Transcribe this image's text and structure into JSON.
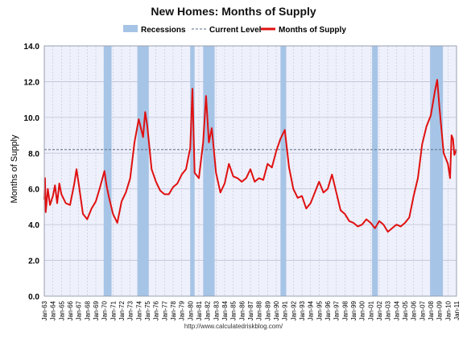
{
  "title": "New Homes: Months of Supply",
  "source": "http://www.calculatedriskblog.com/",
  "colors": {
    "plot_bg": "#eef0fb",
    "grid": "#bfc3d6",
    "recession": "#a6c4e6",
    "current_level": "#5b6c86",
    "line": "#e01010",
    "frame": "#9aa0b0"
  },
  "legend": [
    {
      "label": "Recessions",
      "symbol": "band"
    },
    {
      "label": "Current Level",
      "symbol": "dashed-line"
    },
    {
      "label": "Months of Supply",
      "symbol": "line"
    }
  ],
  "chart_data": {
    "type": "line",
    "title": "New Homes: Months of Supply",
    "ylabel": "Months of Supply",
    "xlabel": "",
    "ylim": [
      0,
      14
    ],
    "yticks": [
      "0.0",
      "2.0",
      "4.0",
      "6.0",
      "8.0",
      "10.0",
      "12.0",
      "14.0"
    ],
    "x_range": [
      "Jan-63",
      "Jan-11"
    ],
    "xticks": [
      "Jan-63",
      "Jan-64",
      "Jan-65",
      "Jan-66",
      "Jan-67",
      "Jan-68",
      "Jan-69",
      "Jan-70",
      "Jan-71",
      "Jan-72",
      "Jan-73",
      "Jan-74",
      "Jan-75",
      "Jan-76",
      "Jan-77",
      "Jan-78",
      "Jan-79",
      "Jan-80",
      "Jan-81",
      "Jan-82",
      "Jan-83",
      "Jan-84",
      "Jan-85",
      "Jan-86",
      "Jan-87",
      "Jan-88",
      "Jan-89",
      "Jan-90",
      "Jan-91",
      "Jan-92",
      "Jan-93",
      "Jan-94",
      "Jan-95",
      "Jan-96",
      "Jan-97",
      "Jan-98",
      "Jan-99",
      "Jan-00",
      "Jan-01",
      "Jan-02",
      "Jan-03",
      "Jan-04",
      "Jan-05",
      "Jan-06",
      "Jan-07",
      "Jan-08",
      "Jan-09",
      "Jan-10",
      "Jan-11"
    ],
    "grid": true,
    "legend_position": "top",
    "current_level": 8.2,
    "recessions": [
      {
        "start": "Dec-69",
        "end": "Nov-70"
      },
      {
        "start": "Nov-73",
        "end": "Mar-75"
      },
      {
        "start": "Jan-80",
        "end": "Jul-80"
      },
      {
        "start": "Jul-81",
        "end": "Nov-82"
      },
      {
        "start": "Jul-90",
        "end": "Mar-91"
      },
      {
        "start": "Mar-01",
        "end": "Nov-01"
      },
      {
        "start": "Dec-07",
        "end": "Jun-09"
      }
    ],
    "series": [
      {
        "name": "Months of Supply",
        "points": [
          [
            "Jan-63",
            5.4
          ],
          [
            "Feb-63",
            6.6
          ],
          [
            "Mar-63",
            4.7
          ],
          [
            "Jun-63",
            6.0
          ],
          [
            "Sep-63",
            5.1
          ],
          [
            "Jan-64",
            5.6
          ],
          [
            "Apr-64",
            6.2
          ],
          [
            "Jul-64",
            5.2
          ],
          [
            "Oct-64",
            6.3
          ],
          [
            "Jan-65",
            5.7
          ],
          [
            "Jul-65",
            5.2
          ],
          [
            "Jan-66",
            5.1
          ],
          [
            "Jul-66",
            6.3
          ],
          [
            "Oct-66",
            7.1
          ],
          [
            "Jan-67",
            6.3
          ],
          [
            "Jul-67",
            4.6
          ],
          [
            "Jan-68",
            4.3
          ],
          [
            "Jul-68",
            4.9
          ],
          [
            "Jan-69",
            5.3
          ],
          [
            "Jul-69",
            6.1
          ],
          [
            "Jan-70",
            7.0
          ],
          [
            "Apr-70",
            6.2
          ],
          [
            "Jul-70",
            5.6
          ],
          [
            "Jan-71",
            4.6
          ],
          [
            "Jul-71",
            4.1
          ],
          [
            "Jan-72",
            5.3
          ],
          [
            "Jul-72",
            5.8
          ],
          [
            "Jan-73",
            6.6
          ],
          [
            "Jul-73",
            8.6
          ],
          [
            "Jan-74",
            9.9
          ],
          [
            "Jul-74",
            8.9
          ],
          [
            "Oct-74",
            10.3
          ],
          [
            "Jan-75",
            9.5
          ],
          [
            "Jul-75",
            7.1
          ],
          [
            "Jan-76",
            6.4
          ],
          [
            "Jul-76",
            5.9
          ],
          [
            "Jan-77",
            5.7
          ],
          [
            "Jul-77",
            5.7
          ],
          [
            "Jan-78",
            6.1
          ],
          [
            "Jul-78",
            6.3
          ],
          [
            "Jan-79",
            6.8
          ],
          [
            "Jul-79",
            7.1
          ],
          [
            "Jan-80",
            8.3
          ],
          [
            "Apr-80",
            11.6
          ],
          [
            "Jul-80",
            6.9
          ],
          [
            "Jan-81",
            6.6
          ],
          [
            "Jul-81",
            8.6
          ],
          [
            "Nov-81",
            11.2
          ],
          [
            "Mar-82",
            8.6
          ],
          [
            "Jul-82",
            9.4
          ],
          [
            "Jan-83",
            6.9
          ],
          [
            "Jul-83",
            5.8
          ],
          [
            "Jan-84",
            6.3
          ],
          [
            "Jul-84",
            7.4
          ],
          [
            "Jan-85",
            6.7
          ],
          [
            "Jul-85",
            6.6
          ],
          [
            "Jan-86",
            6.4
          ],
          [
            "Jul-86",
            6.6
          ],
          [
            "Jan-87",
            7.1
          ],
          [
            "Jul-87",
            6.4
          ],
          [
            "Jan-88",
            6.6
          ],
          [
            "Jul-88",
            6.5
          ],
          [
            "Jan-89",
            7.4
          ],
          [
            "Jul-89",
            7.2
          ],
          [
            "Jan-90",
            8.1
          ],
          [
            "Jul-90",
            8.8
          ],
          [
            "Jan-91",
            9.3
          ],
          [
            "Jul-91",
            7.2
          ],
          [
            "Jan-92",
            6.0
          ],
          [
            "Jul-92",
            5.5
          ],
          [
            "Jan-93",
            5.6
          ],
          [
            "Jul-93",
            4.9
          ],
          [
            "Jan-94",
            5.2
          ],
          [
            "Jul-94",
            5.8
          ],
          [
            "Jan-95",
            6.4
          ],
          [
            "Jul-95",
            5.8
          ],
          [
            "Jan-96",
            6.0
          ],
          [
            "Jul-96",
            6.8
          ],
          [
            "Jan-97",
            5.8
          ],
          [
            "Jul-97",
            4.8
          ],
          [
            "Jan-98",
            4.6
          ],
          [
            "Jul-98",
            4.2
          ],
          [
            "Jan-99",
            4.1
          ],
          [
            "Jul-99",
            3.9
          ],
          [
            "Jan-00",
            4.0
          ],
          [
            "Jul-00",
            4.3
          ],
          [
            "Jan-01",
            4.1
          ],
          [
            "Jul-01",
            3.8
          ],
          [
            "Jan-02",
            4.2
          ],
          [
            "Jul-02",
            4.0
          ],
          [
            "Jan-03",
            3.6
          ],
          [
            "Jul-03",
            3.8
          ],
          [
            "Jan-04",
            4.0
          ],
          [
            "Jul-04",
            3.9
          ],
          [
            "Jan-05",
            4.1
          ],
          [
            "Jul-05",
            4.4
          ],
          [
            "Jan-06",
            5.6
          ],
          [
            "Jul-06",
            6.6
          ],
          [
            "Jan-07",
            8.5
          ],
          [
            "Jul-07",
            9.5
          ],
          [
            "Jan-08",
            10.1
          ],
          [
            "Jul-08",
            11.5
          ],
          [
            "Oct-08",
            12.1
          ],
          [
            "Jan-09",
            10.6
          ],
          [
            "Jul-09",
            8.0
          ],
          [
            "Jan-10",
            7.4
          ],
          [
            "Apr-10",
            6.6
          ],
          [
            "Jun-10",
            9.0
          ],
          [
            "Aug-10",
            8.8
          ],
          [
            "Oct-10",
            7.9
          ],
          [
            "Jan-11",
            8.2
          ]
        ]
      }
    ]
  }
}
